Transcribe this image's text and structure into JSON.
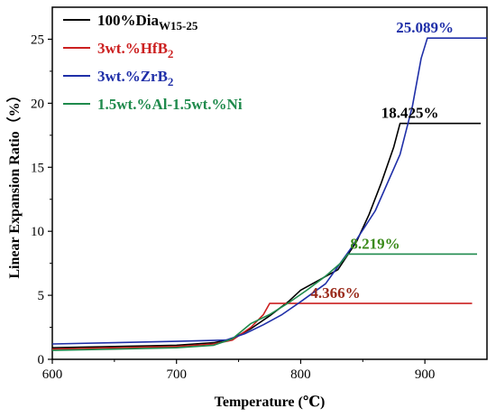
{
  "chart_data": {
    "type": "line",
    "xlabel": "Temperature (℃)",
    "ylabel": "Linear Expansion Ratio（%）",
    "xlim": [
      600,
      950
    ],
    "ylim": [
      0,
      27.5
    ],
    "x_ticks": [
      600,
      700,
      800,
      900
    ],
    "y_ticks": [
      0,
      5,
      10,
      15,
      20,
      25
    ],
    "grid": false,
    "legend_position": "top-left",
    "series": [
      {
        "name": "100%Dia",
        "name_sub": "W15-25",
        "color": "#000000",
        "points": [
          [
            600,
            0.9
          ],
          [
            650,
            1.0
          ],
          [
            700,
            1.1
          ],
          [
            730,
            1.3
          ],
          [
            745,
            1.6
          ],
          [
            760,
            2.4
          ],
          [
            775,
            3.4
          ],
          [
            790,
            4.5
          ],
          [
            800,
            5.4
          ],
          [
            815,
            6.2
          ],
          [
            830,
            7.0
          ],
          [
            845,
            9.2
          ],
          [
            855,
            11.3
          ],
          [
            865,
            13.8
          ],
          [
            875,
            16.6
          ],
          [
            880,
            18.425
          ],
          [
            945,
            18.425
          ]
        ]
      },
      {
        "name": "3wt.%HfB",
        "name_sub": "2",
        "color": "#cc2020",
        "points": [
          [
            600,
            0.8
          ],
          [
            650,
            0.9
          ],
          [
            700,
            1.0
          ],
          [
            730,
            1.2
          ],
          [
            745,
            1.5
          ],
          [
            760,
            2.5
          ],
          [
            770,
            3.5
          ],
          [
            775,
            4.366
          ],
          [
            938,
            4.366
          ]
        ]
      },
      {
        "name": "3wt.%ZrB",
        "name_sub": "2",
        "color": "#1f2fa8",
        "points": [
          [
            600,
            1.2
          ],
          [
            650,
            1.3
          ],
          [
            700,
            1.4
          ],
          [
            740,
            1.5
          ],
          [
            755,
            2.0
          ],
          [
            770,
            2.7
          ],
          [
            785,
            3.5
          ],
          [
            800,
            4.5
          ],
          [
            820,
            5.9
          ],
          [
            840,
            8.6
          ],
          [
            860,
            11.6
          ],
          [
            880,
            16.0
          ],
          [
            890,
            19.8
          ],
          [
            897,
            23.5
          ],
          [
            902,
            25.089
          ],
          [
            950,
            25.089
          ]
        ]
      },
      {
        "name": "1.5wt.%Al-1.5wt.%Ni",
        "name_sub": "",
        "color": "#1f8a4c",
        "points": [
          [
            600,
            0.7
          ],
          [
            650,
            0.8
          ],
          [
            700,
            0.9
          ],
          [
            730,
            1.1
          ],
          [
            745,
            1.6
          ],
          [
            760,
            2.8
          ],
          [
            775,
            3.5
          ],
          [
            790,
            4.4
          ],
          [
            805,
            5.4
          ],
          [
            820,
            6.5
          ],
          [
            832,
            7.5
          ],
          [
            838,
            8.219
          ],
          [
            942,
            8.219
          ]
        ]
      }
    ],
    "annotations": [
      {
        "text": "25.089%",
        "x": 900,
        "y": 25.089,
        "color": "#1f2fa8"
      },
      {
        "text": "18.425%",
        "x": 888,
        "y": 18.425,
        "color": "#000000"
      },
      {
        "text": "8.219%",
        "x": 860,
        "y": 8.219,
        "color": "#3a8a1a"
      },
      {
        "text": "4.366%",
        "x": 828,
        "y": 4.366,
        "color": "#9a2a1a"
      }
    ]
  }
}
